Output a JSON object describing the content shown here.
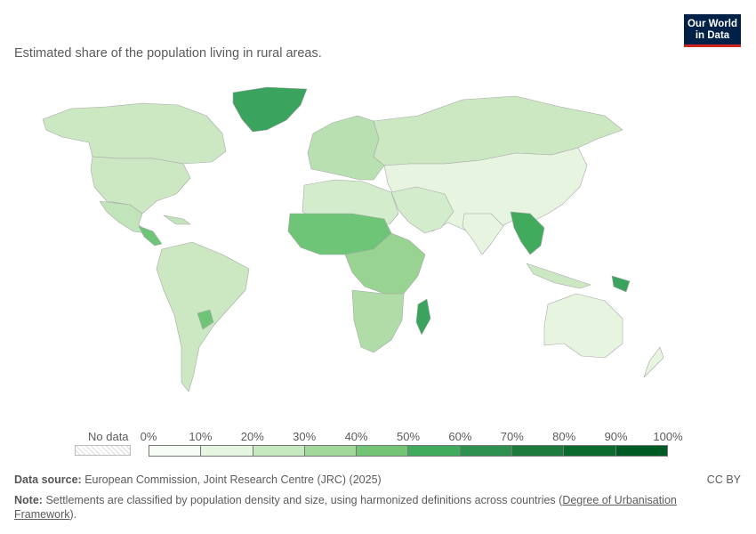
{
  "subtitle": "Estimated share of the population living in rural areas.",
  "logo": {
    "line1": "Our World",
    "line2": "in Data"
  },
  "legend": {
    "no_data_label": "No data",
    "ticks": [
      "0%",
      "10%",
      "20%",
      "30%",
      "40%",
      "50%",
      "60%",
      "70%",
      "80%",
      "90%",
      "100%"
    ],
    "colors": [
      "#f7fcf5",
      "#e5f5e0",
      "#c7e9c0",
      "#a1d99b",
      "#74c476",
      "#41ab5d",
      "#2e9150",
      "#1c7a3c",
      "#0b6a2e",
      "#005a24"
    ]
  },
  "footer": {
    "source_label": "Data source:",
    "source_text": "European Commission, Joint Research Centre (JRC) (2025)",
    "license": "CC BY",
    "note_label": "Note:",
    "note_text": "Settlements are classified by population density and size, using harmonized definitions across countries (",
    "note_link": "Degree of Urbanisation Framework",
    "note_end": ")."
  },
  "map_colors": {
    "greenland": "#3aa35e",
    "north_america": "#cbe8c3",
    "latin_america": "#c2e4ba",
    "south_america": "#cbe8c3",
    "europe": "#b9e0b0",
    "russia": "#cbe8c3",
    "asia": "#e6f4e0",
    "africa_north": "#d3edcc",
    "sahel": "#6ec477",
    "central_africa": "#98d391",
    "southern_africa": "#b0dca8",
    "madagascar": "#3aa35e",
    "indochina": "#41ab5d",
    "australia": "#e6f4e0",
    "png": "#3aa35e",
    "outline": "#a8a8a8"
  }
}
